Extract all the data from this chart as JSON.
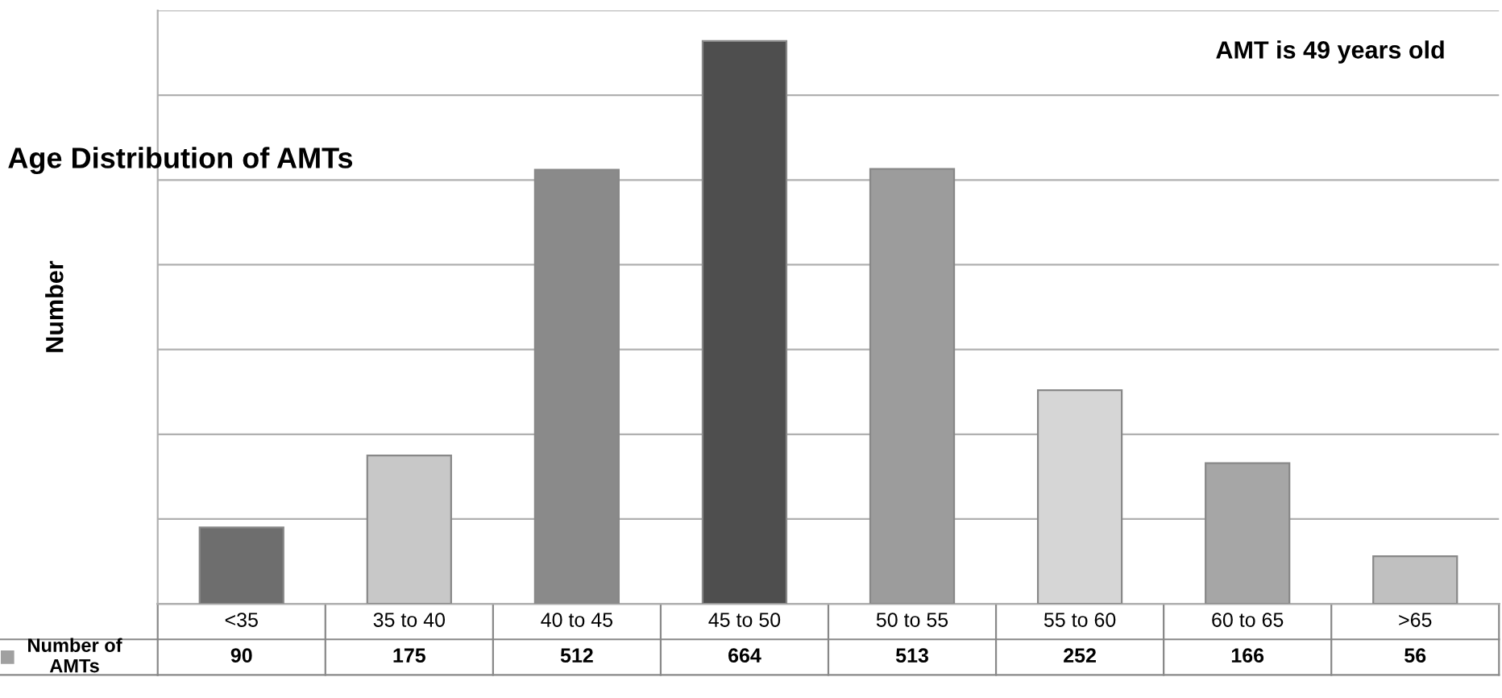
{
  "chart_data": {
    "type": "bar",
    "title": "Age Distribution of AMTs",
    "ylabel": "Number",
    "annotations": [
      "AMT is 49 years old"
    ],
    "categories": [
      "<35",
      "35 to 40",
      "40 to 45",
      "45 to 50",
      "50 to 55",
      "55 to 60",
      "60 to 65",
      ">65"
    ],
    "series": [
      {
        "name": "Number of AMTs",
        "color": "#a0a0a0",
        "colors": [
          "#6e6e6e",
          "#c8c8c8",
          "#8a8a8a",
          "#4e4e4e",
          "#9c9c9c",
          "#d6d6d6",
          "#a6a6a6",
          "#c0c0c0"
        ],
        "values": [
          90,
          175,
          512,
          664,
          513,
          252,
          166,
          56
        ]
      }
    ],
    "ylim": [
      0,
      700
    ],
    "yticks": [
      {
        "value": 100,
        "label": null
      },
      {
        "value": 200,
        "label": null
      },
      {
        "value": 300,
        "label": null
      },
      {
        "value": 400,
        "label": null
      },
      {
        "value": 500,
        "label": null
      },
      {
        "value": 600,
        "label": null
      },
      {
        "value": 700,
        "label": null
      }
    ],
    "grid": "y",
    "data_labels": true,
    "tick_labels": false
  }
}
